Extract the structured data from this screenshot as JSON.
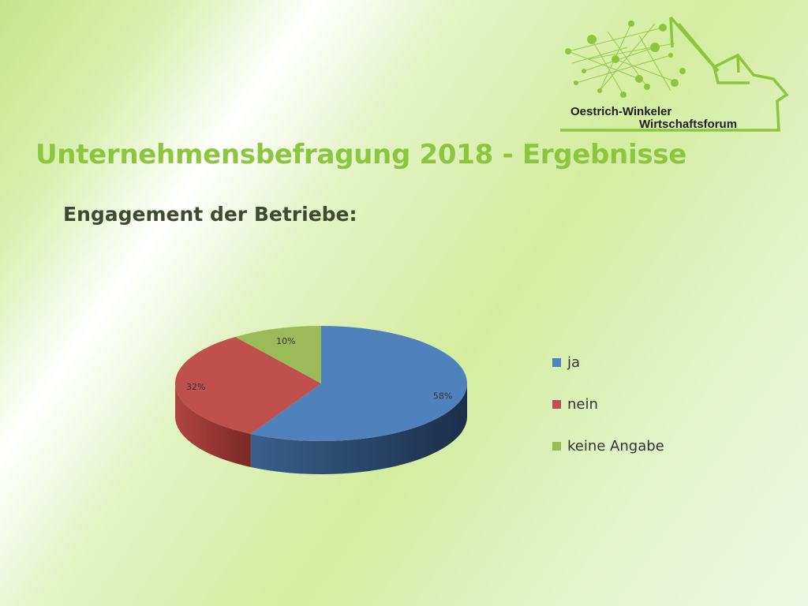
{
  "header": {
    "title": "Unternehmensbefragung 2018 - Ergebnisse",
    "subtitle": "Engagement der Betriebe:"
  },
  "logo": {
    "line1": "Oestrich-Winkeler",
    "line2": "Wirtschaftsforum",
    "color": "#8cc63f"
  },
  "chart_data": {
    "type": "pie",
    "style": "3d",
    "title": "",
    "legend_position": "right",
    "categories": [
      "ja",
      "nein",
      "keine Angabe"
    ],
    "values": [
      58,
      32,
      10
    ],
    "data_labels": [
      "58%",
      "32%",
      "10%"
    ],
    "colors": [
      "#4f81bd",
      "#c0504d",
      "#9bbb59"
    ]
  }
}
